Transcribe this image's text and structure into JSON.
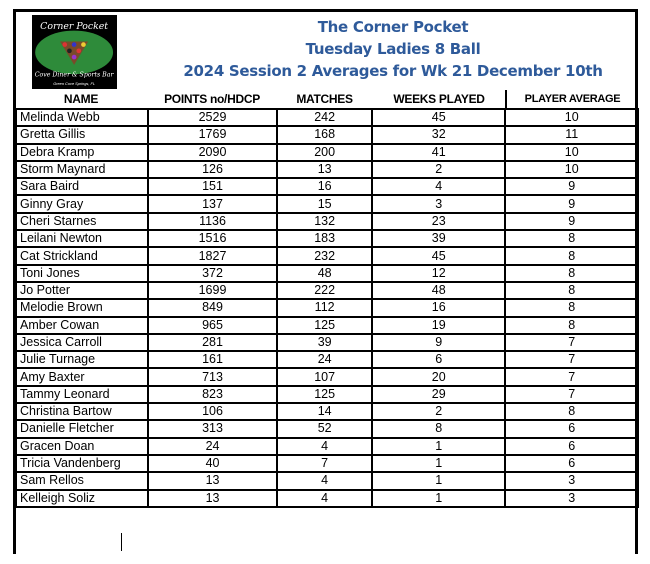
{
  "logo": {
    "text": "The Corner Pocket Cove Diner & Sports Bar Green Cove Springs, FL",
    "colors": {
      "bg": "#000000",
      "felt": "#2e8b3a"
    }
  },
  "titles": [
    "The Corner Pocket",
    "Tuesday Ladies 8 Ball",
    "2024 Session 2 Averages for Wk 21 December 10th"
  ],
  "title_color": "#2e5a9a",
  "columns": [
    "NAME",
    "POINTS no/HDCP",
    "MATCHES",
    "WEEKS PLAYED",
    "PLAYER AVERAGE"
  ],
  "rows": [
    [
      "Melinda Webb",
      "2529",
      "242",
      "45",
      "10"
    ],
    [
      "Gretta Gillis",
      "1769",
      "168",
      "32",
      "11"
    ],
    [
      "Debra Kramp",
      "2090",
      "200",
      "41",
      "10"
    ],
    [
      "Storm Maynard",
      "126",
      "13",
      "2",
      "10"
    ],
    [
      "Sara Baird",
      "151",
      "16",
      "4",
      "9"
    ],
    [
      "Ginny Gray",
      "137",
      "15",
      "3",
      "9"
    ],
    [
      "Cheri Starnes",
      "1136",
      "132",
      "23",
      "9"
    ],
    [
      "Leilani Newton",
      "1516",
      "183",
      "39",
      "8"
    ],
    [
      "Cat Strickland",
      "1827",
      "232",
      "45",
      "8"
    ],
    [
      "Toni Jones",
      "372",
      "48",
      "12",
      "8"
    ],
    [
      "Jo Potter",
      "1699",
      "222",
      "48",
      "8"
    ],
    [
      "Melodie Brown",
      "849",
      "112",
      "16",
      "8"
    ],
    [
      "Amber Cowan",
      "965",
      "125",
      "19",
      "8"
    ],
    [
      "Jessica Carroll",
      "281",
      "39",
      "9",
      "7"
    ],
    [
      "Julie Turnage",
      "161",
      "24",
      "6",
      "7"
    ],
    [
      "Amy Baxter",
      "713",
      "107",
      "20",
      "7"
    ],
    [
      "Tammy Leonard",
      "823",
      "125",
      "29",
      "7"
    ],
    [
      "Christina Bartow",
      "106",
      "14",
      "2",
      "8"
    ],
    [
      "Danielle Fletcher",
      "313",
      "52",
      "8",
      "6"
    ],
    [
      "Gracen Doan",
      "24",
      "4",
      "1",
      "6"
    ],
    [
      "Tricia Vandenberg",
      "40",
      "7",
      "1",
      "6"
    ],
    [
      "Sam Rellos",
      "13",
      "4",
      "1",
      "3"
    ],
    [
      "Kelleigh Soliz",
      "13",
      "4",
      "1",
      "3"
    ]
  ]
}
